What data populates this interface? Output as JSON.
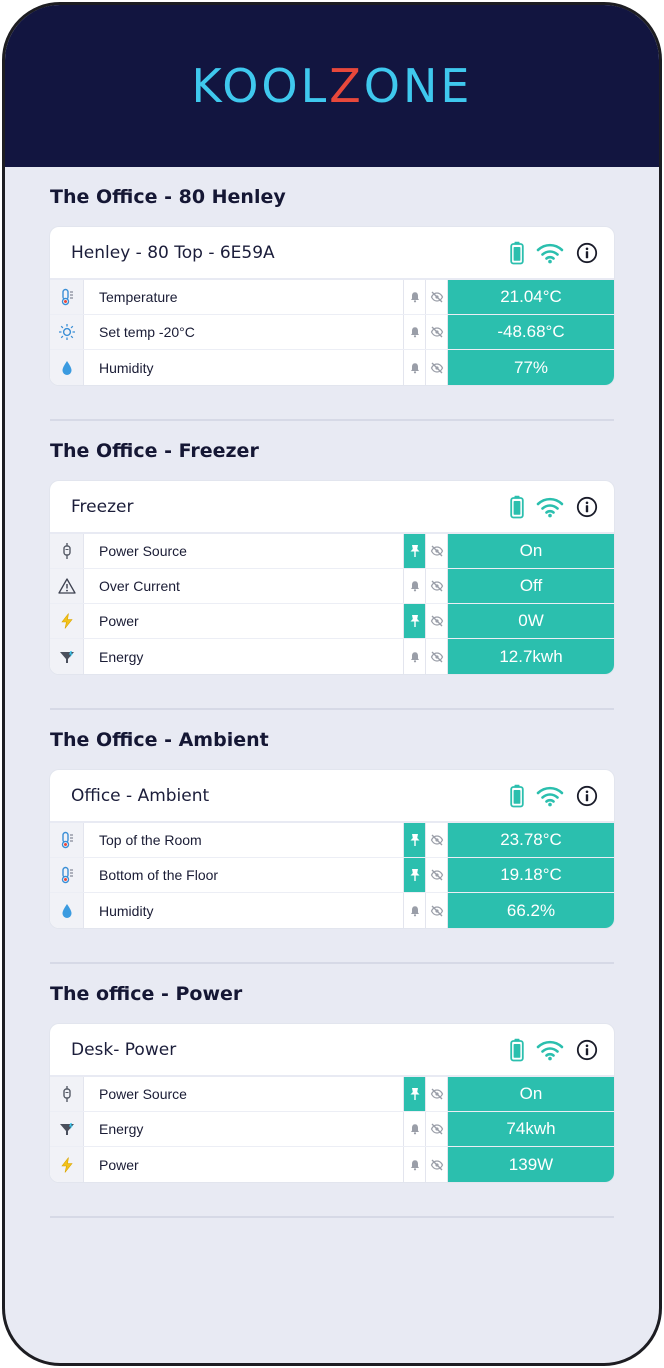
{
  "app": {
    "logo_prefix": "KOOL",
    "logo_z": "Z",
    "logo_suffix": "ONE"
  },
  "colors": {
    "header_bg": "#121540",
    "logo": "#3fc8ee",
    "logo_accent": "#e8483b",
    "value_bg": "#2bbfae",
    "page_bg": "#e8eaf3"
  },
  "sections": [
    {
      "title": "The Office - 80 Henley",
      "device": "Henley - 80 Top - 6E59A",
      "rows": [
        {
          "icon": "thermometer-icon",
          "label": "Temperature",
          "alert": "bell",
          "value": "21.04°C"
        },
        {
          "icon": "sun-icon",
          "label": "Set temp -20°C",
          "alert": "bell",
          "value": "-48.68°C"
        },
        {
          "icon": "droplet-icon",
          "label": "Humidity",
          "alert": "bell",
          "value": "77%"
        }
      ]
    },
    {
      "title": "The Office - Freezer",
      "device": "Freezer",
      "rows": [
        {
          "icon": "plug-icon",
          "label": "Power Source",
          "alert": "pin",
          "value": "On"
        },
        {
          "icon": "warning-icon",
          "label": "Over Current",
          "alert": "bell",
          "value": "Off"
        },
        {
          "icon": "lightning-icon",
          "label": "Power",
          "alert": "pin",
          "value": "0W"
        },
        {
          "icon": "energy-icon",
          "label": "Energy",
          "alert": "bell",
          "value": "12.7kwh"
        }
      ]
    },
    {
      "title": "The Office - Ambient",
      "device": "Office - Ambient",
      "rows": [
        {
          "icon": "thermometer-icon",
          "label": "Top of the Room",
          "alert": "pin",
          "value": "23.78°C"
        },
        {
          "icon": "thermometer-icon",
          "label": "Bottom of the Floor",
          "alert": "pin",
          "value": "19.18°C"
        },
        {
          "icon": "droplet-icon",
          "label": "Humidity",
          "alert": "bell",
          "value": "66.2%"
        }
      ]
    },
    {
      "title": "The office - Power",
      "device": "Desk- Power",
      "rows": [
        {
          "icon": "plug-icon",
          "label": "Power Source",
          "alert": "pin",
          "value": "On"
        },
        {
          "icon": "energy-icon",
          "label": "Energy",
          "alert": "bell",
          "value": "74kwh"
        },
        {
          "icon": "lightning-icon",
          "label": "Power",
          "alert": "bell",
          "value": "139W"
        }
      ]
    }
  ]
}
